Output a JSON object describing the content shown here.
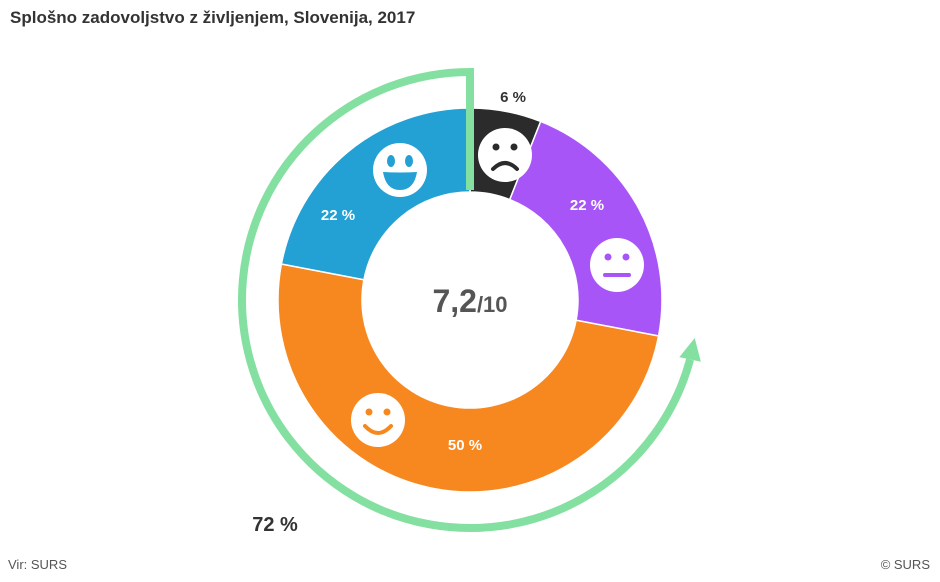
{
  "title": "Splošno zadovoljstvo z življenjem, Slovenija, 2017",
  "source": "Vir: SURS",
  "credit": "© SURS",
  "chart_data": {
    "type": "pie",
    "title": "Splošno zadovoljstvo z življenjem, Slovenija, 2017",
    "center_value": "7,2",
    "center_suffix": "/10",
    "slices": [
      {
        "label": "6 %",
        "value": 6,
        "color": "#2b2b2b",
        "icon": "sad-face-icon",
        "label_color": "#333333"
      },
      {
        "label": "22 %",
        "value": 22,
        "color": "#a855f7",
        "icon": "neutral-face-icon",
        "label_color": "#ffffff"
      },
      {
        "label": "50 %",
        "value": 50,
        "color": "#f7881f",
        "icon": "smiling-face-icon",
        "label_color": "#ffffff"
      },
      {
        "label": "22 %",
        "value": 22,
        "color": "#23a0d4",
        "icon": "laughing-face-icon",
        "label_color": "#ffffff"
      }
    ],
    "highlight": {
      "label": "72 %",
      "value": 72,
      "color": "#84e0a0",
      "covers": [
        "50 %",
        "22 %"
      ]
    }
  }
}
